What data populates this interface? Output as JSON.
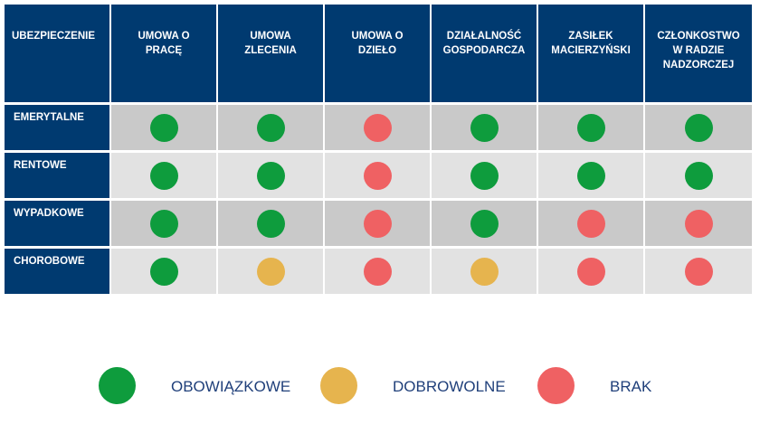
{
  "colors": {
    "header_bg": "#003a70",
    "required": "#0e9c3d",
    "voluntary": "#e6b44e",
    "none": "#ef6163"
  },
  "table": {
    "corner_label": "UBEZPIECZENIE",
    "columns": [
      [
        "UMOWA O",
        "PRACĘ"
      ],
      [
        "UMOWA",
        "ZLECENIA"
      ],
      [
        "UMOWA O",
        "DZIEŁO"
      ],
      [
        "DZIAŁALNOŚĆ",
        "GOSPODARCZA"
      ],
      [
        "ZASIŁEK",
        "MACIERZYŃSKI"
      ],
      [
        "CZŁONKOSTWO",
        "W RADZIE",
        "NADZORCZEJ"
      ]
    ],
    "rows": [
      {
        "label": "EMERYTALNE",
        "values": [
          "required",
          "required",
          "none",
          "required",
          "required",
          "required"
        ]
      },
      {
        "label": "RENTOWE",
        "values": [
          "required",
          "required",
          "none",
          "required",
          "required",
          "required"
        ]
      },
      {
        "label": "WYPADKOWE",
        "values": [
          "required",
          "required",
          "none",
          "required",
          "none",
          "none"
        ]
      },
      {
        "label": "CHOROBOWE",
        "values": [
          "required",
          "voluntary",
          "none",
          "voluntary",
          "none",
          "none"
        ]
      }
    ]
  },
  "legend": [
    {
      "key": "required",
      "label": "OBOWIĄZKOWE"
    },
    {
      "key": "voluntary",
      "label": "DOBROWOLNE"
    },
    {
      "key": "none",
      "label": "BRAK"
    }
  ]
}
